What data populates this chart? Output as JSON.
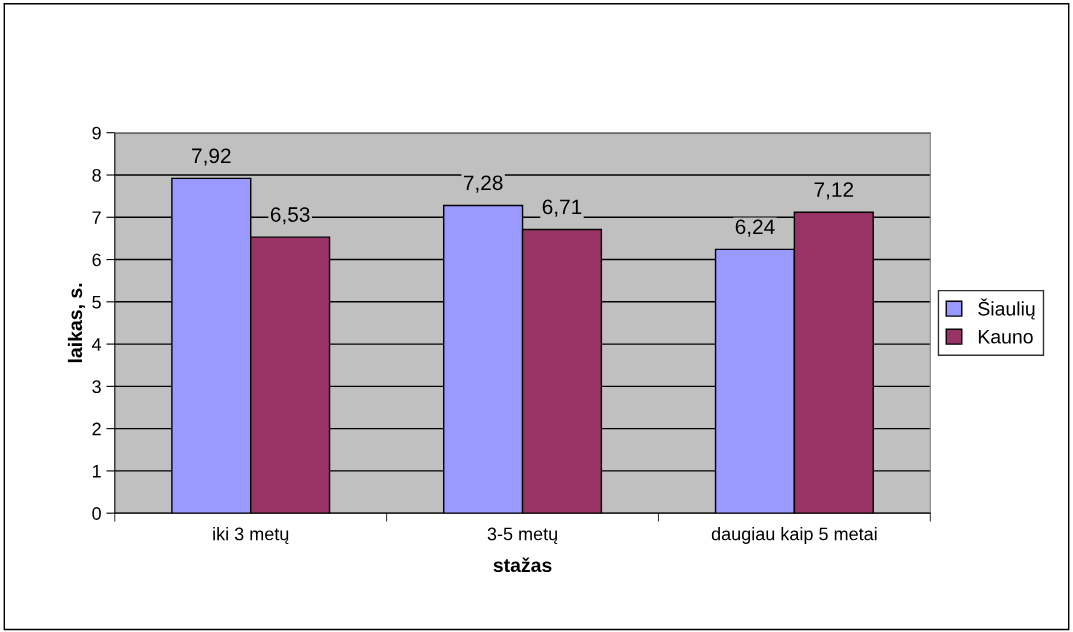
{
  "chart_data": {
    "type": "bar",
    "xlabel": "stažas",
    "ylabel": "laikas, s.",
    "categories": [
      "iki 3 metų",
      "3-5 metų",
      "daugiau kaip 5 metai"
    ],
    "series": [
      {
        "name": "Šiaulių",
        "color": "#9999ff",
        "values": [
          7.92,
          7.28,
          6.24
        ],
        "value_labels": [
          "7,92",
          "7,28",
          "6,24"
        ]
      },
      {
        "name": "Kauno",
        "color": "#993366",
        "values": [
          6.53,
          6.71,
          7.12
        ],
        "value_labels": [
          "6,53",
          "6,71",
          "7,12"
        ]
      }
    ],
    "ylim": [
      0,
      9
    ],
    "yticks": [
      0,
      1,
      2,
      3,
      4,
      5,
      6,
      7,
      8,
      9
    ],
    "grid": "y",
    "legend": "right"
  }
}
